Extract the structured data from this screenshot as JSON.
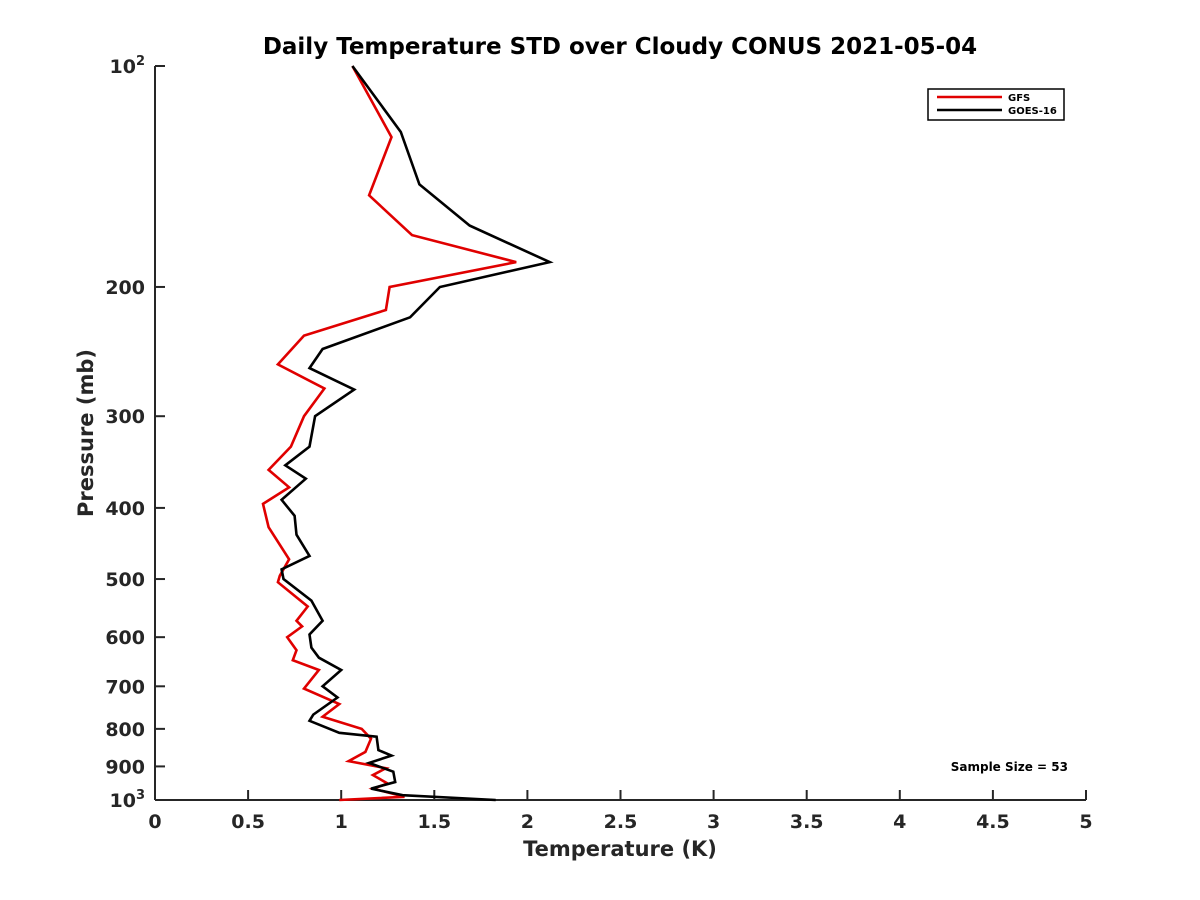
{
  "chart_data": {
    "type": "line",
    "title": "Daily Temperature STD over Cloudy CONUS 2021-05-04",
    "xlabel": "Temperature (K)",
    "ylabel": "Pressure (mb)",
    "xlim": [
      0,
      5
    ],
    "ylim": [
      100,
      1000
    ],
    "y_scale": "log",
    "y_reversed": true,
    "grid": false,
    "legend_position": "top-right",
    "x_ticks": [
      "0",
      "0.5",
      "1",
      "1.5",
      "2",
      "2.5",
      "3",
      "3.5",
      "4",
      "4.5",
      "5"
    ],
    "x_tick_values": [
      0,
      0.5,
      1,
      1.5,
      2,
      2.5,
      3,
      3.5,
      4,
      4.5,
      5
    ],
    "y_ticks": [
      {
        "value": 100,
        "base": "10",
        "exp": "2"
      },
      {
        "value": 200,
        "label": "200"
      },
      {
        "value": 300,
        "label": "300"
      },
      {
        "value": 400,
        "label": "400"
      },
      {
        "value": 500,
        "label": "500"
      },
      {
        "value": 600,
        "label": "600"
      },
      {
        "value": 700,
        "label": "700"
      },
      {
        "value": 800,
        "label": "800"
      },
      {
        "value": 900,
        "label": "900"
      },
      {
        "value": 1000,
        "base": "10",
        "exp": "3"
      }
    ],
    "annotation": "Sample Size = 53",
    "series": [
      {
        "name": "GFS",
        "color": "#e00000",
        "points": [
          [
            1.06,
            100
          ],
          [
            1.27,
            125
          ],
          [
            1.15,
            150
          ],
          [
            1.38,
            170
          ],
          [
            1.94,
            185
          ],
          [
            1.26,
            200
          ],
          [
            1.24,
            215
          ],
          [
            0.8,
            233
          ],
          [
            0.66,
            255
          ],
          [
            0.91,
            275
          ],
          [
            0.8,
            300
          ],
          [
            0.73,
            330
          ],
          [
            0.61,
            355
          ],
          [
            0.72,
            375
          ],
          [
            0.58,
            395
          ],
          [
            0.61,
            425
          ],
          [
            0.72,
            470
          ],
          [
            0.67,
            495
          ],
          [
            0.66,
            505
          ],
          [
            0.82,
            545
          ],
          [
            0.76,
            570
          ],
          [
            0.79,
            580
          ],
          [
            0.71,
            600
          ],
          [
            0.76,
            625
          ],
          [
            0.74,
            645
          ],
          [
            0.88,
            665
          ],
          [
            0.8,
            705
          ],
          [
            0.99,
            740
          ],
          [
            0.9,
            770
          ],
          [
            1.11,
            800
          ],
          [
            1.16,
            825
          ],
          [
            1.13,
            860
          ],
          [
            1.04,
            885
          ],
          [
            1.24,
            905
          ],
          [
            1.17,
            925
          ],
          [
            1.25,
            950
          ],
          [
            1.17,
            965
          ],
          [
            1.34,
            990
          ],
          [
            0.99,
            1000
          ]
        ]
      },
      {
        "name": "GOES-16",
        "color": "#000000",
        "points": [
          [
            1.06,
            100
          ],
          [
            1.32,
            123
          ],
          [
            1.42,
            145
          ],
          [
            1.69,
            165
          ],
          [
            2.12,
            185
          ],
          [
            1.53,
            200
          ],
          [
            1.37,
            220
          ],
          [
            0.9,
            243
          ],
          [
            0.83,
            258
          ],
          [
            1.07,
            276
          ],
          [
            0.86,
            300
          ],
          [
            0.83,
            330
          ],
          [
            0.7,
            350
          ],
          [
            0.81,
            365
          ],
          [
            0.68,
            390
          ],
          [
            0.75,
            410
          ],
          [
            0.76,
            435
          ],
          [
            0.83,
            465
          ],
          [
            0.68,
            485
          ],
          [
            0.69,
            500
          ],
          [
            0.84,
            535
          ],
          [
            0.9,
            570
          ],
          [
            0.83,
            595
          ],
          [
            0.84,
            620
          ],
          [
            0.88,
            640
          ],
          [
            1.0,
            665
          ],
          [
            0.9,
            700
          ],
          [
            0.98,
            725
          ],
          [
            0.85,
            765
          ],
          [
            0.83,
            780
          ],
          [
            0.99,
            810
          ],
          [
            1.19,
            820
          ],
          [
            1.2,
            855
          ],
          [
            1.27,
            870
          ],
          [
            1.15,
            890
          ],
          [
            1.28,
            915
          ],
          [
            1.29,
            945
          ],
          [
            1.16,
            965
          ],
          [
            1.33,
            985
          ],
          [
            1.83,
            1000
          ]
        ]
      }
    ]
  }
}
